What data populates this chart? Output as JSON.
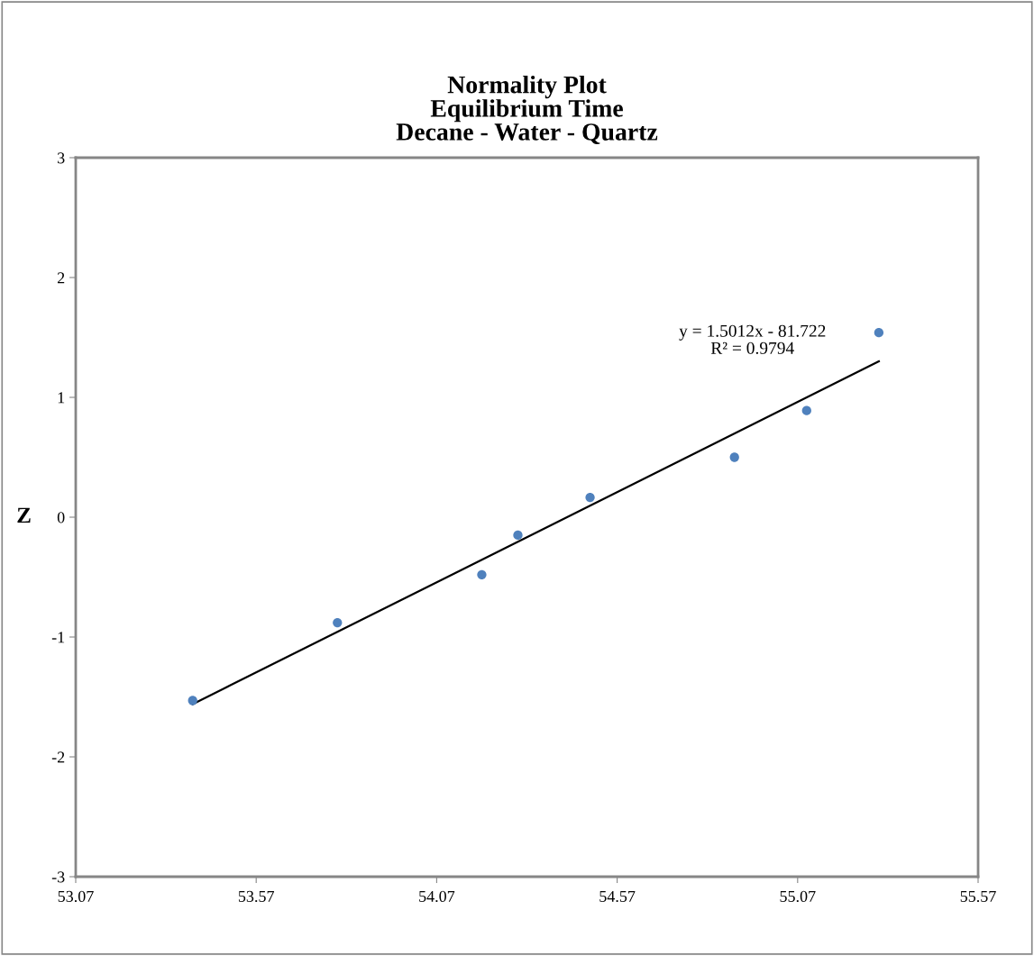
{
  "chart_data": {
    "type": "scatter",
    "title": "Normality Plot\nEquilibrium Time\nDecane - Water - Quartz",
    "ylabel": "Z",
    "annotations": [
      "y = 1.5012x - 81.722\nR² = 0.9794"
    ],
    "series": [
      {
        "color": "#4f81bd",
        "marker": "circle",
        "x": [
          53.394,
          53.795,
          54.195,
          54.295,
          54.495,
          54.895,
          55.095,
          55.295
        ],
        "values": [
          -1.53,
          -0.88,
          -0.48,
          -0.15,
          0.165,
          0.5,
          0.89,
          1.54
        ]
      },
      {
        "type": "line",
        "color": "#000000",
        "line_style": "solid",
        "x": [
          53.394,
          55.295
        ],
        "values": [
          -1.56,
          1.3
        ]
      }
    ],
    "xlim": [
      53.07,
      55.57
    ],
    "xticks": [
      53.07,
      53.57,
      54.07,
      54.57,
      55.07,
      55.57
    ],
    "ylim": [
      -3,
      3
    ],
    "yticks": [
      -3,
      -2,
      -1,
      0,
      1,
      2,
      3
    ],
    "grid": false,
    "legend": false
  }
}
